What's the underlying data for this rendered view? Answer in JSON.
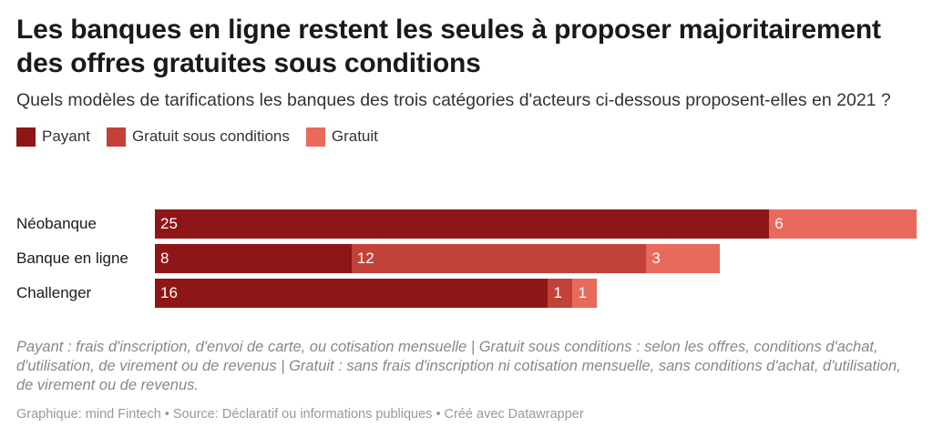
{
  "title": "Les banques en ligne restent les seules à proposer majoritairement des offres gratuites sous conditions",
  "subtitle": "Quels modèles de tarifications les banques des trois catégories d'acteurs ci-dessous proposent-elles en 2021 ?",
  "colors": {
    "payant": "#8e1617",
    "gratuit_sous_conditions": "#c2423a",
    "gratuit": "#e86a5c"
  },
  "chart_data": {
    "type": "bar",
    "orientation": "horizontal",
    "stacked": true,
    "categories": [
      "Néobanque",
      "Banque en ligne",
      "Challenger"
    ],
    "series": [
      {
        "name": "Payant",
        "values": [
          25,
          8,
          16
        ]
      },
      {
        "name": "Gratuit sous conditions",
        "values": [
          0,
          12,
          1
        ]
      },
      {
        "name": "Gratuit",
        "values": [
          6,
          3,
          1
        ]
      }
    ],
    "xlim": [
      0,
      31
    ],
    "legend": "top",
    "grid": false
  },
  "notes": "Payant : frais d'inscription, d'envoi de carte, ou cotisation mensuelle | Gratuit sous conditions : selon les offres, conditions d'achat, d'utilisation, de virement ou de revenus | Gratuit : sans frais d'inscription ni cotisation mensuelle, sans conditions d'achat, d'utilisation, de virement ou de revenus.",
  "source": "Graphique: mind Fintech • Source: Déclaratif ou informations publiques • Créé avec Datawrapper"
}
